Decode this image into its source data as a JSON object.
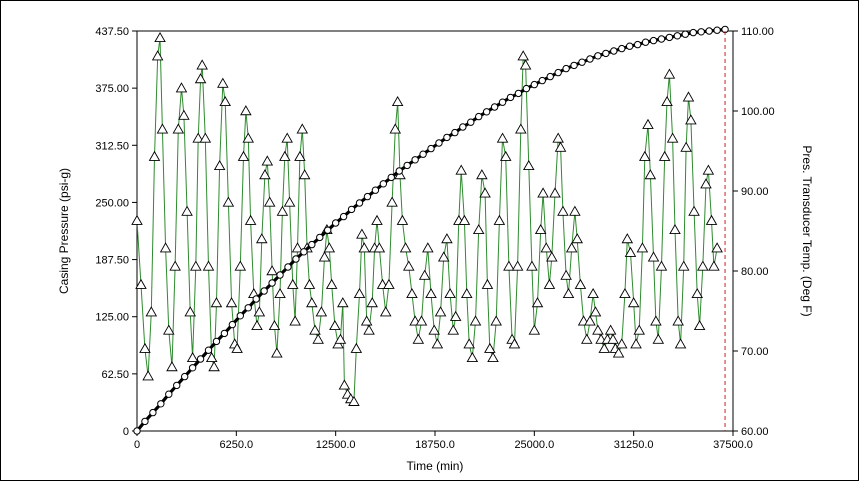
{
  "chart_data": {
    "type": "line",
    "title": "",
    "xlabel": "Time (min)",
    "ylabel_left": "Casing Pressure (psi-g)",
    "ylabel_right": "Pres. Transducer Temp. (Deg F)",
    "xlim": [
      0,
      37500
    ],
    "ylim_left": [
      0,
      437.5
    ],
    "ylim_right": [
      60,
      110
    ],
    "x_ticks": [
      "0",
      "6250.0",
      "12500.0",
      "18750.0",
      "25000.0",
      "31250.0",
      "37500.0"
    ],
    "y_ticks_left": [
      "0",
      "62.50",
      "125.00",
      "187.50",
      "250.00",
      "312.50",
      "375.00",
      "437.50"
    ],
    "y_ticks_right": [
      "60.00",
      "70.00",
      "80.00",
      "90.00",
      "100.00",
      "110.00"
    ],
    "grid": false,
    "colors": {
      "pressure_line": "#2e8b2e",
      "temperature_line": "#000000",
      "vertical_marker": "#cc2222"
    },
    "vertical_marker_x": 37000,
    "series": [
      {
        "axis": "left",
        "marker": "triangle",
        "points": [
          [
            0,
            230
          ],
          [
            250,
            160
          ],
          [
            500,
            90
          ],
          [
            700,
            60
          ],
          [
            900,
            130
          ],
          [
            1100,
            300
          ],
          [
            1300,
            410
          ],
          [
            1450,
            430
          ],
          [
            1600,
            330
          ],
          [
            1800,
            200
          ],
          [
            2000,
            110
          ],
          [
            2200,
            70
          ],
          [
            2400,
            180
          ],
          [
            2600,
            330
          ],
          [
            2800,
            375
          ],
          [
            2950,
            345
          ],
          [
            3150,
            240
          ],
          [
            3350,
            130
          ],
          [
            3500,
            80
          ],
          [
            3700,
            180
          ],
          [
            3850,
            320
          ],
          [
            4000,
            385
          ],
          [
            4100,
            400
          ],
          [
            4300,
            320
          ],
          [
            4500,
            180
          ],
          [
            4700,
            80
          ],
          [
            4850,
            70
          ],
          [
            5000,
            140
          ],
          [
            5200,
            290
          ],
          [
            5400,
            380
          ],
          [
            5550,
            360
          ],
          [
            5750,
            250
          ],
          [
            5950,
            140
          ],
          [
            6150,
            95
          ],
          [
            6300,
            90
          ],
          [
            6500,
            180
          ],
          [
            6700,
            300
          ],
          [
            6850,
            350
          ],
          [
            7000,
            320
          ],
          [
            7150,
            230
          ],
          [
            7350,
            150
          ],
          [
            7550,
            115
          ],
          [
            7700,
            130
          ],
          [
            7850,
            210
          ],
          [
            8050,
            280
          ],
          [
            8200,
            295
          ],
          [
            8350,
            250
          ],
          [
            8500,
            175
          ],
          [
            8650,
            115
          ],
          [
            8800,
            85
          ],
          [
            9000,
            150
          ],
          [
            9150,
            240
          ],
          [
            9300,
            300
          ],
          [
            9450,
            320
          ],
          [
            9600,
            250
          ],
          [
            9800,
            160
          ],
          [
            9950,
            120
          ],
          [
            10100,
            200
          ],
          [
            10250,
            300
          ],
          [
            10400,
            330
          ],
          [
            10550,
            280
          ],
          [
            10700,
            200
          ],
          [
            10850,
            160
          ],
          [
            11000,
            140
          ],
          [
            11200,
            110
          ],
          [
            11400,
            100
          ],
          [
            11600,
            130
          ],
          [
            11800,
            190
          ],
          [
            11950,
            220
          ],
          [
            12100,
            200
          ],
          [
            12250,
            160
          ],
          [
            12450,
            115
          ],
          [
            12650,
            95
          ],
          [
            12800,
            100
          ],
          [
            12950,
            140
          ],
          [
            13050,
            50
          ],
          [
            13250,
            40
          ],
          [
            13450,
            35
          ],
          [
            13650,
            32
          ],
          [
            13800,
            90
          ],
          [
            14000,
            150
          ],
          [
            14150,
            215
          ],
          [
            14300,
            200
          ],
          [
            14450,
            120
          ],
          [
            14600,
            110
          ],
          [
            14800,
            140
          ],
          [
            14950,
            200
          ],
          [
            15100,
            230
          ],
          [
            15250,
            200
          ],
          [
            15450,
            160
          ],
          [
            15650,
            130
          ],
          [
            15850,
            160
          ],
          [
            16050,
            250
          ],
          [
            16250,
            330
          ],
          [
            16400,
            360
          ],
          [
            16550,
            280
          ],
          [
            16700,
            230
          ],
          [
            16900,
            200
          ],
          [
            17100,
            180
          ],
          [
            17300,
            150
          ],
          [
            17500,
            120
          ],
          [
            17700,
            100
          ],
          [
            17900,
            120
          ],
          [
            18100,
            170
          ],
          [
            18300,
            200
          ],
          [
            18500,
            150
          ],
          [
            18700,
            110
          ],
          [
            18900,
            95
          ],
          [
            19100,
            130
          ],
          [
            19300,
            190
          ],
          [
            19500,
            210
          ],
          [
            19700,
            150
          ],
          [
            19900,
            110
          ],
          [
            20050,
            125
          ],
          [
            20250,
            230
          ],
          [
            20400,
            285
          ],
          [
            20600,
            230
          ],
          [
            20750,
            150
          ],
          [
            20900,
            95
          ],
          [
            21100,
            80
          ],
          [
            21300,
            120
          ],
          [
            21500,
            220
          ],
          [
            21700,
            280
          ],
          [
            21900,
            260
          ],
          [
            22050,
            160
          ],
          [
            22200,
            90
          ],
          [
            22400,
            80
          ],
          [
            22600,
            120
          ],
          [
            22800,
            230
          ],
          [
            23000,
            320
          ],
          [
            23200,
            300
          ],
          [
            23400,
            180
          ],
          [
            23600,
            100
          ],
          [
            23750,
            95
          ],
          [
            23950,
            180
          ],
          [
            24150,
            330
          ],
          [
            24300,
            410
          ],
          [
            24450,
            400
          ],
          [
            24650,
            290
          ],
          [
            24850,
            180
          ],
          [
            25000,
            110
          ],
          [
            25200,
            140
          ],
          [
            25400,
            220
          ],
          [
            25550,
            260
          ],
          [
            25750,
            200
          ],
          [
            25950,
            160
          ],
          [
            26100,
            190
          ],
          [
            26300,
            260
          ],
          [
            26500,
            320
          ],
          [
            26650,
            310
          ],
          [
            26800,
            240
          ],
          [
            27000,
            170
          ],
          [
            27150,
            150
          ],
          [
            27350,
            200
          ],
          [
            27550,
            240
          ],
          [
            27700,
            210
          ],
          [
            27900,
            160
          ],
          [
            28100,
            120
          ],
          [
            28300,
            100
          ],
          [
            28500,
            120
          ],
          [
            28700,
            150
          ],
          [
            28850,
            130
          ],
          [
            29000,
            110
          ],
          [
            29200,
            100
          ],
          [
            29400,
            90
          ],
          [
            29600,
            100
          ],
          [
            29800,
            110
          ],
          [
            29950,
            100
          ],
          [
            30100,
            90
          ],
          [
            30300,
            85
          ],
          [
            30500,
            95
          ],
          [
            30700,
            150
          ],
          [
            30850,
            210
          ],
          [
            31050,
            195
          ],
          [
            31250,
            140
          ],
          [
            31400,
            95
          ],
          [
            31600,
            110
          ],
          [
            31800,
            200
          ],
          [
            31950,
            300
          ],
          [
            32150,
            335
          ],
          [
            32300,
            280
          ],
          [
            32500,
            190
          ],
          [
            32650,
            120
          ],
          [
            32800,
            100
          ],
          [
            33000,
            180
          ],
          [
            33200,
            300
          ],
          [
            33350,
            360
          ],
          [
            33500,
            390
          ],
          [
            33700,
            320
          ],
          [
            33850,
            220
          ],
          [
            34050,
            120
          ],
          [
            34200,
            95
          ],
          [
            34400,
            180
          ],
          [
            34550,
            310
          ],
          [
            34700,
            365
          ],
          [
            34850,
            340
          ],
          [
            35050,
            240
          ],
          [
            35250,
            150
          ],
          [
            35400,
            115
          ],
          [
            35600,
            180
          ],
          [
            35800,
            270
          ],
          [
            35950,
            285
          ],
          [
            36150,
            230
          ],
          [
            36300,
            180
          ],
          [
            36500,
            200
          ]
        ]
      },
      {
        "axis": "right",
        "marker": "circle",
        "points": [
          [
            0,
            60.0
          ],
          [
            500,
            61.2
          ],
          [
            1000,
            62.3
          ],
          [
            1500,
            63.4
          ],
          [
            2000,
            64.6
          ],
          [
            2500,
            65.7
          ],
          [
            3000,
            66.8
          ],
          [
            3500,
            67.9
          ],
          [
            4000,
            69.0
          ],
          [
            4500,
            70.1
          ],
          [
            5000,
            71.2
          ],
          [
            5500,
            72.2
          ],
          [
            6000,
            73.3
          ],
          [
            6500,
            74.4
          ],
          [
            7000,
            75.4
          ],
          [
            7500,
            76.5
          ],
          [
            8000,
            77.5
          ],
          [
            8500,
            78.5
          ],
          [
            9000,
            79.5
          ],
          [
            9500,
            80.5
          ],
          [
            10000,
            81.5
          ],
          [
            10500,
            82.4
          ],
          [
            11000,
            83.3
          ],
          [
            11500,
            84.2
          ],
          [
            12000,
            85.1
          ],
          [
            12500,
            86.0
          ],
          [
            13000,
            86.8
          ],
          [
            13500,
            87.7
          ],
          [
            14000,
            88.5
          ],
          [
            14500,
            89.3
          ],
          [
            15000,
            90.1
          ],
          [
            15500,
            90.9
          ],
          [
            16000,
            91.7
          ],
          [
            16500,
            92.5
          ],
          [
            17000,
            93.2
          ],
          [
            17500,
            93.9
          ],
          [
            18000,
            94.6
          ],
          [
            18500,
            95.3
          ],
          [
            19000,
            96.0
          ],
          [
            19500,
            96.7
          ],
          [
            20000,
            97.3
          ],
          [
            20500,
            98.0
          ],
          [
            21000,
            98.6
          ],
          [
            21500,
            99.3
          ],
          [
            22000,
            99.9
          ],
          [
            22500,
            100.5
          ],
          [
            23000,
            101.1
          ],
          [
            23500,
            101.7
          ],
          [
            24000,
            102.2
          ],
          [
            24500,
            102.8
          ],
          [
            25000,
            103.3
          ],
          [
            25500,
            103.8
          ],
          [
            26000,
            104.3
          ],
          [
            26500,
            104.8
          ],
          [
            27000,
            105.3
          ],
          [
            27500,
            105.7
          ],
          [
            28000,
            106.1
          ],
          [
            28500,
            106.5
          ],
          [
            29000,
            106.9
          ],
          [
            29500,
            107.2
          ],
          [
            30000,
            107.5
          ],
          [
            30500,
            107.8
          ],
          [
            31000,
            108.1
          ],
          [
            31500,
            108.3
          ],
          [
            32000,
            108.6
          ],
          [
            32500,
            108.8
          ],
          [
            33000,
            109.0
          ],
          [
            33500,
            109.2
          ],
          [
            34000,
            109.4
          ],
          [
            34500,
            109.6
          ],
          [
            35000,
            109.8
          ],
          [
            35500,
            109.9
          ],
          [
            36000,
            110.0
          ],
          [
            36500,
            110.1
          ],
          [
            37000,
            110.2
          ]
        ]
      }
    ]
  }
}
